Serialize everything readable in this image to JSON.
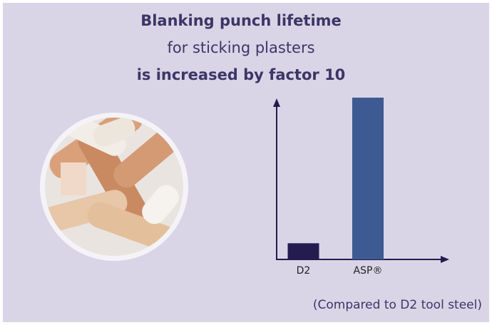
{
  "chart_data": {
    "type": "bar",
    "title": [
      "Blanking punch lifetime",
      "for sticking plasters",
      "is increased by factor 10"
    ],
    "categories": [
      "D2",
      "ASP®"
    ],
    "values": [
      1,
      10
    ],
    "colors": [
      "#241c4f",
      "#3e5a92"
    ],
    "ylim": [
      0,
      10
    ],
    "note": "(Compared to D2 tool steel)"
  }
}
